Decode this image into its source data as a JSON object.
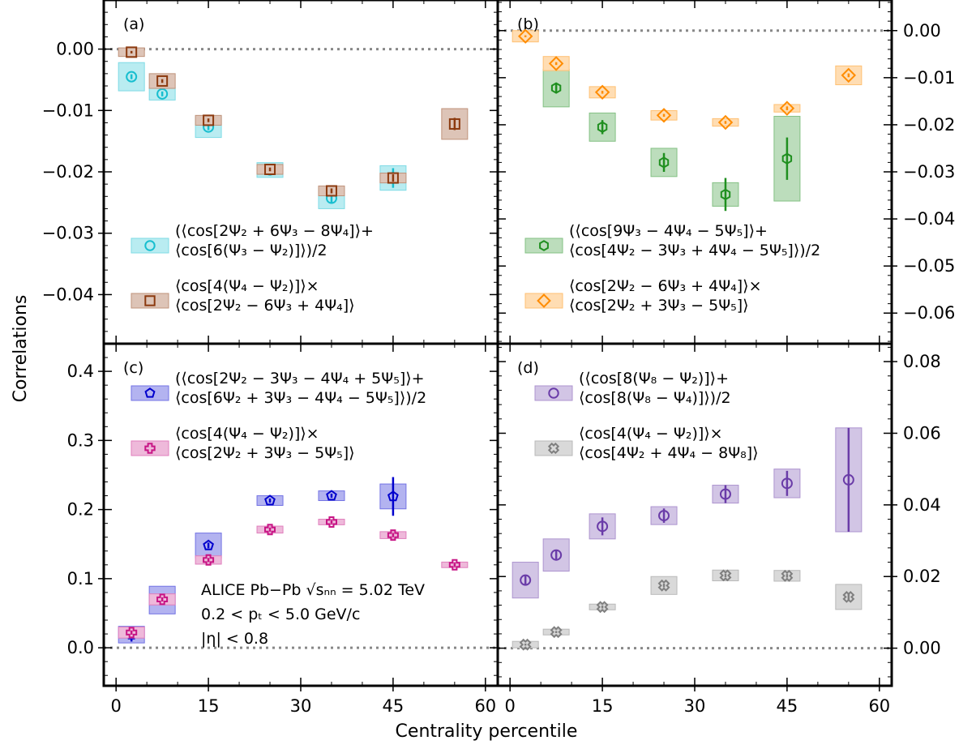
{
  "figure": {
    "ylabel": "Correlations",
    "xlabel": "Centrality percentile",
    "annotation": [
      "ALICE Pb−Pb √sₙₙ = 5.02 TeV",
      "0.2 < pₜ < 5.0 GeV/c",
      "|η| < 0.8"
    ]
  },
  "chart_data": [
    {
      "panel": "(a)",
      "type": "scatter",
      "xlim": [
        -2,
        62
      ],
      "ylim": [
        -0.048,
        0.008
      ],
      "yticks": [
        0.0,
        -0.01,
        -0.02,
        -0.03,
        -0.04
      ],
      "ytick_labels": [
        "0.00",
        "−0.01",
        "−0.02",
        "−0.03",
        "−0.04"
      ],
      "yaxis_side": "left",
      "legend_placement": "lower-left",
      "series": [
        {
          "name": [
            "(⟨cos[2Ψ₂ + 6Ψ₃ − 8Ψ₄]⟩+",
            "⟨cos[6(Ψ₃ − Ψ₂)]⟩)/2"
          ],
          "marker": "circle",
          "color": "#17becf",
          "x": [
            2.5,
            7.5,
            15,
            25,
            35,
            45
          ],
          "y": [
            -0.0045,
            -0.0073,
            -0.0127,
            -0.0197,
            -0.0243,
            -0.021
          ],
          "stat": [
            0.0004,
            0.0004,
            0.0005,
            0.0005,
            0.0008,
            0.0016
          ],
          "sys": [
            0.0023,
            0.001,
            0.0017,
            0.0012,
            0.0017,
            0.002
          ]
        },
        {
          "name": [
            "⟨cos[4(Ψ₄ − Ψ₂)]⟩×",
            "⟨cos[2Ψ₂ − 6Ψ₃ + 4Ψ₄]⟩"
          ],
          "marker": "square",
          "color": "#8c3a0f",
          "x": [
            2.5,
            7.5,
            15,
            25,
            35,
            45,
            55
          ],
          "y": [
            -0.0005,
            -0.0052,
            -0.0116,
            -0.0196,
            -0.0231,
            -0.021,
            -0.0122
          ],
          "stat": [
            0.0002,
            0.0003,
            0.0003,
            0.0003,
            0.0004,
            0.0006,
            0.001
          ],
          "sys": [
            0.0007,
            0.0012,
            0.0008,
            0.0008,
            0.0008,
            0.0008,
            0.0025
          ]
        }
      ]
    },
    {
      "panel": "(b)",
      "type": "scatter",
      "xlim": [
        -2,
        62
      ],
      "ylim": [
        -0.0665,
        0.0065
      ],
      "yticks": [
        0.0,
        -0.01,
        -0.02,
        -0.03,
        -0.04,
        -0.05,
        -0.06
      ],
      "ytick_labels": [
        "0.00",
        "−0.01",
        "−0.02",
        "−0.03",
        "−0.04",
        "−0.05",
        "−0.06"
      ],
      "yaxis_side": "right",
      "legend_placement": "lower-left",
      "series": [
        {
          "name": [
            "(⟨cos[9Ψ₃ − 4Ψ₄ − 5Ψ₅]⟩+",
            "⟨cos[4Ψ₂ − 3Ψ₃ + 4Ψ₄ − 5Ψ₅]⟩)/2"
          ],
          "marker": "hexagon",
          "color": "#1f8f1f",
          "x": [
            7.5,
            15,
            25,
            35,
            45
          ],
          "y": [
            -0.0122,
            -0.0205,
            -0.028,
            -0.0348,
            -0.0272
          ],
          "stat": [
            0.001,
            0.0015,
            0.002,
            0.0035,
            0.0045
          ],
          "sys": [
            0.004,
            0.003,
            0.003,
            0.0025,
            0.009
          ]
        },
        {
          "name": [
            "⟨cos[2Ψ₂ − 6Ψ₃ + 4Ψ₄]⟩×",
            "⟨cos[2Ψ₂ + 3Ψ₃ − 5Ψ₅]⟩"
          ],
          "marker": "diamond",
          "color": "#ff8c00",
          "x": [
            2.5,
            7.5,
            15,
            25,
            35,
            45,
            55
          ],
          "y": [
            -0.0012,
            -0.007,
            -0.0131,
            -0.018,
            -0.0195,
            -0.0165,
            -0.0095
          ],
          "stat": [
            0.0002,
            0.0003,
            0.0003,
            0.0003,
            0.0003,
            0.0004,
            0.0004
          ],
          "sys": [
            0.0012,
            0.0015,
            0.0012,
            0.001,
            0.0008,
            0.0008,
            0.002
          ]
        }
      ]
    },
    {
      "panel": "(c)",
      "type": "scatter",
      "xlim": [
        -2,
        62
      ],
      "ylim": [
        -0.055,
        0.44
      ],
      "yticks": [
        0.0,
        0.1,
        0.2,
        0.3,
        0.4
      ],
      "ytick_labels": [
        "0.0",
        "0.1",
        "0.2",
        "0.3",
        "0.4"
      ],
      "yaxis_side": "left",
      "legend_placement": "upper-left",
      "series": [
        {
          "name": [
            "(⟨cos[2Ψ₂ − 3Ψ₃ − 4Ψ₄ + 5Ψ₅]⟩+",
            "⟨cos[6Ψ₂ + 3Ψ₃ − 4Ψ₄ − 5Ψ₅]⟩)/2"
          ],
          "marker": "pentagon",
          "color": "#0000cd",
          "x": [
            2.5,
            7.5,
            15,
            25,
            35,
            45
          ],
          "y": [
            0.019,
            0.069,
            0.148,
            0.213,
            0.22,
            0.219
          ],
          "stat": [
            0.01,
            0.004,
            0.004,
            0.003,
            0.003,
            0.028
          ],
          "sys": [
            0.012,
            0.02,
            0.018,
            0.007,
            0.007,
            0.018
          ]
        },
        {
          "name": [
            "⟨cos[4(Ψ₄ − Ψ₂)]⟩×",
            "⟨cos[2Ψ₂ + 3Ψ₃ − 5Ψ₅]⟩"
          ],
          "marker": "cross",
          "color": "#c71585",
          "x": [
            2.5,
            7.5,
            15,
            25,
            35,
            45,
            55
          ],
          "y": [
            0.022,
            0.07,
            0.127,
            0.171,
            0.182,
            0.163,
            0.12
          ],
          "stat": [
            0.003,
            0.003,
            0.003,
            0.003,
            0.003,
            0.003,
            0.003
          ],
          "sys": [
            0.008,
            0.008,
            0.006,
            0.005,
            0.004,
            0.005,
            0.004
          ]
        }
      ]
    },
    {
      "panel": "(d)",
      "type": "scatter",
      "xlim": [
        -2,
        62
      ],
      "ylim": [
        -0.0105,
        0.085
      ],
      "yticks": [
        0.0,
        0.02,
        0.04,
        0.06,
        0.08
      ],
      "ytick_labels": [
        "0.00",
        "0.02",
        "0.04",
        "0.06",
        "0.08"
      ],
      "yaxis_side": "right",
      "legend_placement": "upper-left",
      "series": [
        {
          "name": [
            "(⟨cos[8(Ψ₈ − Ψ₂)]⟩+",
            "⟨cos[8(Ψ₈ − Ψ₄)]⟩)/2"
          ],
          "marker": "circle",
          "color": "#6a3ca8",
          "x": [
            2.5,
            7.5,
            15,
            25,
            35,
            45,
            55
          ],
          "y": [
            0.019,
            0.026,
            0.034,
            0.037,
            0.043,
            0.046,
            0.047
          ],
          "stat": [
            0.0015,
            0.0015,
            0.0025,
            0.002,
            0.0025,
            0.0035,
            0.0145
          ],
          "sys": [
            0.005,
            0.0045,
            0.0035,
            0.0025,
            0.0025,
            0.004,
            0.0145
          ]
        },
        {
          "name": [
            "⟨cos[4(Ψ₄ − Ψ₂)]⟩×",
            "⟨cos[4Ψ₂ + 4Ψ₄ − 8Ψ₈]⟩"
          ],
          "marker": "x-cross",
          "color": "#7f7f7f",
          "x": [
            2.5,
            7.5,
            15,
            25,
            35,
            45,
            55
          ],
          "y": [
            0.001,
            0.0045,
            0.0115,
            0.0175,
            0.0203,
            0.0202,
            0.0143
          ],
          "stat": [
            0.0003,
            0.0003,
            0.0004,
            0.0005,
            0.0005,
            0.0005,
            0.001
          ],
          "sys": [
            0.0009,
            0.0008,
            0.0008,
            0.0025,
            0.0015,
            0.0015,
            0.0035
          ]
        }
      ]
    }
  ],
  "xticks": [
    0,
    15,
    30,
    45,
    60
  ]
}
